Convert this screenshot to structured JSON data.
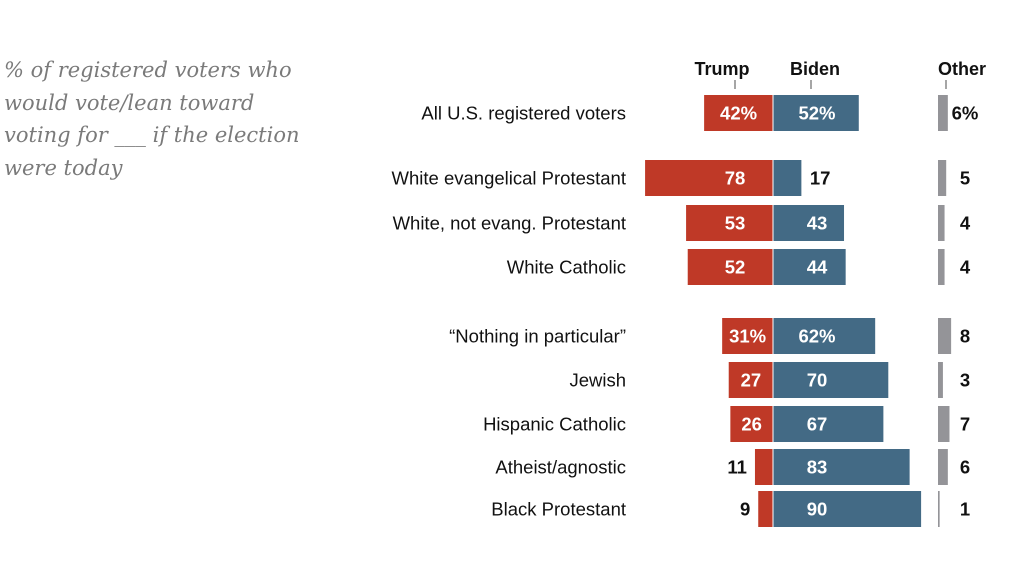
{
  "subtitle": "% of registered voters who would vote/lean toward voting for ___ if the election were today",
  "chart_data": {
    "type": "bar",
    "orientation": "horizontal diverging",
    "columns": [
      "Trump",
      "Biden",
      "Other"
    ],
    "colors": {
      "Trump": "#bf3927",
      "Biden": "#436a85",
      "Other": "#949498"
    },
    "categories": [
      "All U.S. registered voters",
      "White evangelical Protestant",
      "White, not evang. Protestant",
      "White Catholic",
      "“Nothing in particular”",
      "Jewish",
      "Hispanic Catholic",
      "Atheist/agnostic",
      "Black Protestant"
    ],
    "series": [
      {
        "name": "Trump",
        "values": [
          42,
          78,
          53,
          52,
          31,
          27,
          26,
          11,
          9
        ],
        "labels": [
          "42%",
          "78",
          "53",
          "52",
          "31%",
          "27",
          "26",
          "11",
          "9"
        ]
      },
      {
        "name": "Biden",
        "values": [
          52,
          17,
          43,
          44,
          62,
          70,
          67,
          83,
          90
        ],
        "labels": [
          "52%",
          "17",
          "43",
          "44",
          "62%",
          "70",
          "67",
          "83",
          "90"
        ]
      },
      {
        "name": "Other",
        "values": [
          6,
          5,
          4,
          4,
          8,
          3,
          7,
          6,
          1
        ],
        "labels": [
          "6%",
          "5",
          "4",
          "4",
          "8",
          "3",
          "7",
          "6",
          "1"
        ]
      }
    ]
  }
}
